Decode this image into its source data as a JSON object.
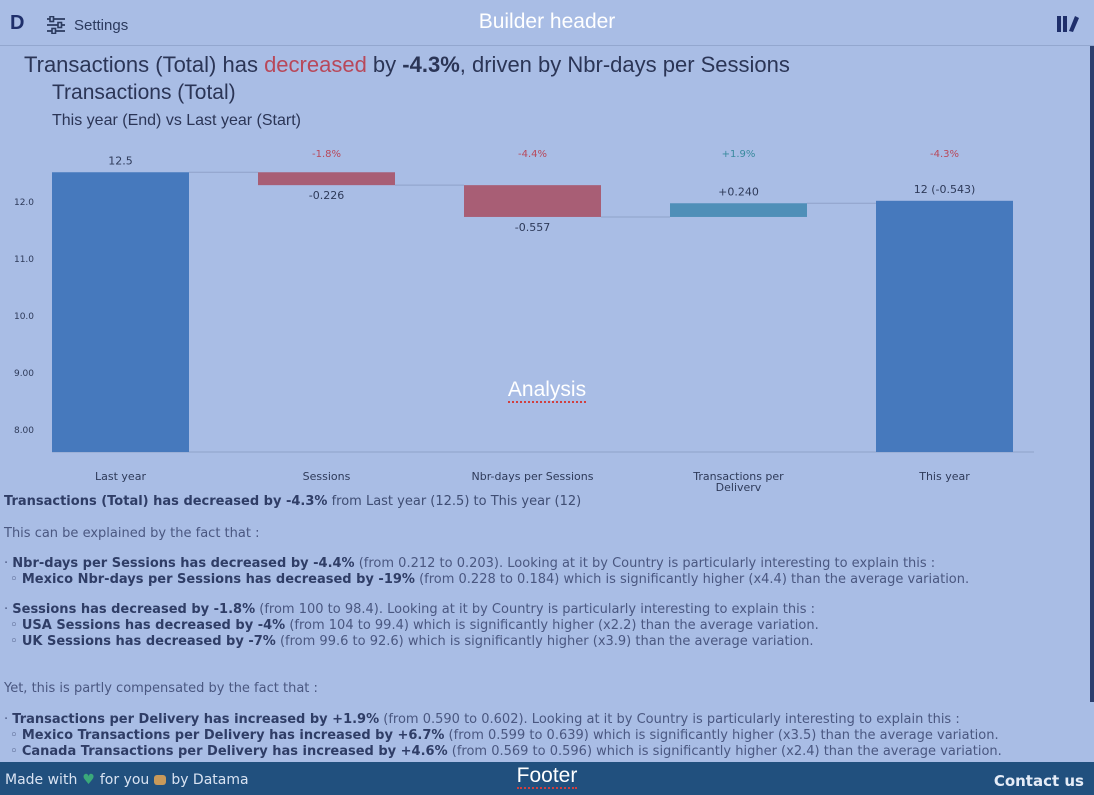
{
  "header": {
    "logo": "D",
    "settings_label": "Settings",
    "overlay_label": "Builder header"
  },
  "headline": {
    "part1": "Transactions (Total) has ",
    "direction": "decreased",
    "part2": " by ",
    "value": "-4.3%",
    "part3": ", driven by Nbr-days per Sessions"
  },
  "chart_title": "Transactions (Total)",
  "chart_subtitle": "This year (End) vs Last year (Start)",
  "analysis_overlay": "Analysis",
  "chart_data": {
    "type": "bar",
    "subtype": "waterfall",
    "categories": [
      "Last year",
      "Sessions",
      "Nbr-days per Sessions",
      "Transactions per Delivery",
      "This year"
    ],
    "category_display": [
      "Last year",
      "Sessions",
      "Nbr-days per Sessions",
      "Transactions per\nDeliverv",
      "This year"
    ],
    "start": 12.5,
    "deltas": [
      -0.226,
      -0.557,
      0.24
    ],
    "end": 12.0,
    "value_labels": [
      "12.5",
      "-0.226",
      "-0.557",
      "+0.240",
      "12 (-0.543)"
    ],
    "pct_labels": [
      "",
      "-1.8%",
      "-4.4%",
      "+1.9%",
      "-4.3%"
    ],
    "y_ticks": [
      "12.0",
      "11.0",
      "10.0",
      "9.00",
      "8.00"
    ],
    "ylim": [
      7.6,
      13.1
    ],
    "colors": {
      "total": "#4679bd",
      "negative": "#a85e75",
      "positive": "#4f8fb8",
      "neg_text": "#b8485a",
      "pos_text": "#3a8a9e"
    }
  },
  "summary": {
    "subject": "Transactions (Total) has ",
    "direction": "decreased",
    "by": " by -4.3%",
    "rest": " from Last year (12.5) to This year (12)"
  },
  "explained_intro": "This can be explained by the fact that :",
  "bullets_negative": [
    {
      "lead": "Nbr-days per Sessions has ",
      "dir": "decreased",
      "by": " by -4.4%",
      "rest": " (from 0.212 to 0.203). Looking at it by Country is particularly interesting to explain this :",
      "subs": [
        {
          "lead": "Mexico Nbr-days per Sessions has ",
          "dir": "decreased",
          "by": " by -19%",
          "rest": " (from 0.228 to 0.184) which is significantly higher (x4.4) than the average variation."
        }
      ]
    },
    {
      "lead": "Sessions has ",
      "dir": "decreased",
      "by": " by -1.8%",
      "rest": " (from 100 to 98.4). Looking at it by Country is particularly interesting to explain this :",
      "subs": [
        {
          "lead": "USA Sessions has ",
          "dir": "decreased",
          "by": " by -4%",
          "rest": " (from 104 to 99.4) which is significantly higher (x2.2) than the average variation."
        },
        {
          "lead": "UK Sessions has ",
          "dir": "decreased",
          "by": " by -7%",
          "rest": " (from 99.6 to 92.6) which is significantly higher (x3.9) than the average variation."
        }
      ]
    }
  ],
  "compensated_intro": "Yet, this is partly compensated by the fact that :",
  "bullets_positive": [
    {
      "lead": "Transactions per Delivery has ",
      "dir": "increased",
      "by": " by +1.9%",
      "rest": " (from 0.590 to 0.602). Looking at it by Country is particularly interesting to explain this :",
      "subs": [
        {
          "lead": "Mexico Transactions per Delivery has ",
          "dir": "increased",
          "by": " by +6.7%",
          "rest": " (from 0.599 to 0.639) which is significantly higher (x3.5) than the average variation."
        },
        {
          "lead": "Canada Transactions per Delivery has ",
          "dir": "increased",
          "by": " by +4.6%",
          "rest": " (from 0.569 to 0.596) which is significantly higher (x2.4) than the average variation."
        }
      ]
    }
  ],
  "footer": {
    "made_with": "Made with",
    "for_you": "for you",
    "by": "by Datama",
    "overlay_label": "Footer",
    "contact": "Contact us"
  }
}
